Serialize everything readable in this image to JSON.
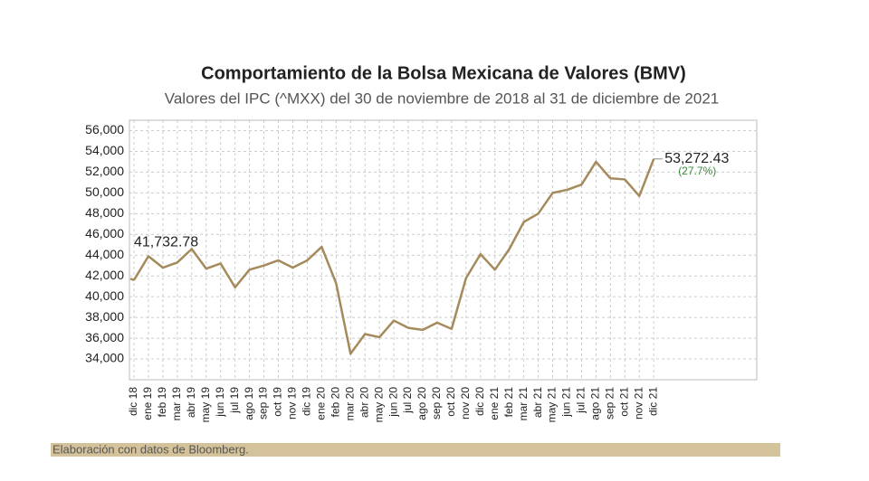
{
  "chart_data": {
    "type": "line",
    "title": "Comportamiento de la Bolsa Mexicana de Valores (BMV)",
    "subtitle": "Valores del IPC (^MXX) del 30 de noviembre de 2018 al 31 de diciembre de 2021",
    "categories": [
      "dic 18",
      "ene 19",
      "feb 19",
      "mar 19",
      "abr 19",
      "may 19",
      "jun 19",
      "jul 19",
      "ago 19",
      "sep 19",
      "oct 19",
      "nov 19",
      "dic 19",
      "ene 20",
      "feb 20",
      "mar 20",
      "abr 20",
      "may 20",
      "jun 20",
      "jul 20",
      "ago 20",
      "sep 20",
      "oct 20",
      "nov 20",
      "dic 20",
      "ene 21",
      "feb 21",
      "mar 21",
      "abr 21",
      "may 21",
      "jun 21",
      "jul 21",
      "ago 21",
      "sep 21",
      "oct 21",
      "nov 21",
      "dic 21"
    ],
    "series": [
      {
        "name": "IPC",
        "color": "#a58a5c",
        "values": [
          41600,
          43900,
          42800,
          43300,
          44600,
          42700,
          43200,
          40900,
          42600,
          43000,
          43500,
          42800,
          43500,
          44800,
          41300,
          34500,
          36400,
          36100,
          37700,
          37000,
          36800,
          37500,
          36900,
          41800,
          44100,
          42600,
          44600,
          47200,
          48000,
          50000,
          50300,
          50800,
          53000,
          51400,
          51300,
          49700,
          53272.43
        ]
      }
    ],
    "start": {
      "value": 41732.78,
      "label": "41,732.78"
    },
    "end": {
      "value": 53272.43,
      "label": "53,272.43",
      "change": "(27.7%)"
    },
    "ylim": [
      32000,
      57000
    ],
    "yticks": [
      {
        "value": 34000,
        "label": "34,000"
      },
      {
        "value": 36000,
        "label": "36,000"
      },
      {
        "value": 38000,
        "label": "38,000"
      },
      {
        "value": 40000,
        "label": "40,000"
      },
      {
        "value": 42000,
        "label": "42,000"
      },
      {
        "value": 44000,
        "label": "44,000"
      },
      {
        "value": 46000,
        "label": "46,000"
      },
      {
        "value": 48000,
        "label": "48,000"
      },
      {
        "value": 50000,
        "label": "50,000"
      },
      {
        "value": 52000,
        "label": "52,000"
      },
      {
        "value": 54000,
        "label": "54,000"
      },
      {
        "value": 56000,
        "label": "56,000"
      }
    ],
    "grid": true,
    "source": "Elaboración con datos de Bloomberg."
  }
}
